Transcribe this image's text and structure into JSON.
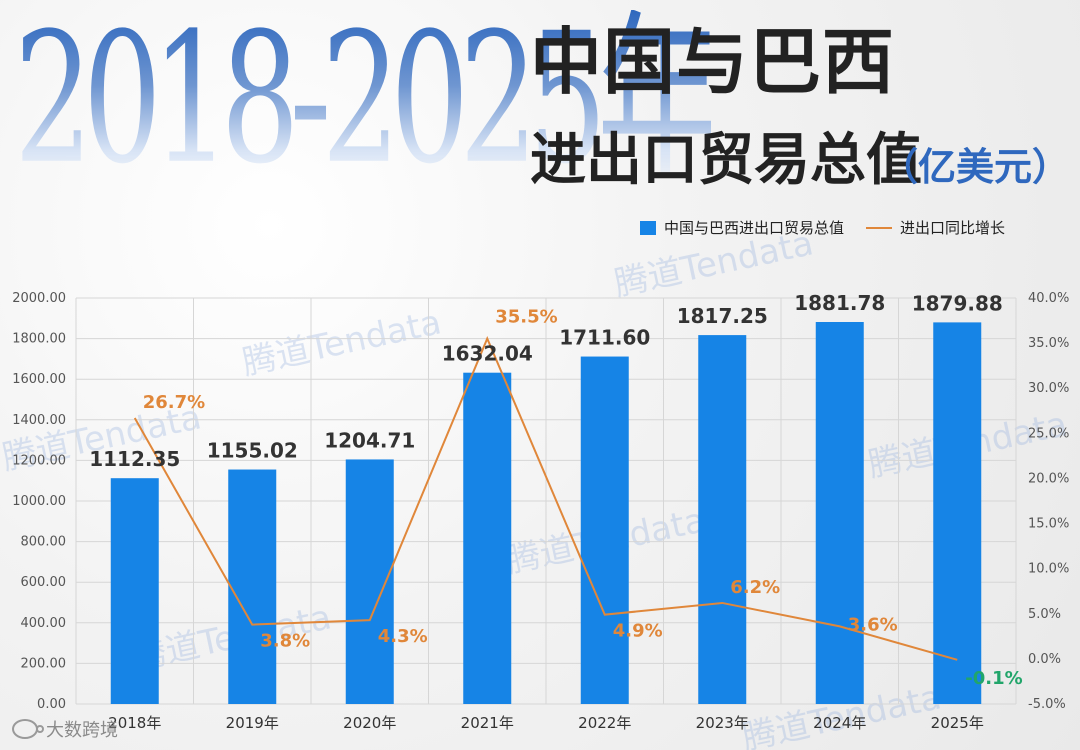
{
  "title": {
    "year_range": "2018-2025年",
    "main": "中国与巴西",
    "sub": "进出口贸易总值",
    "unit": "（亿美元）"
  },
  "watermark": "腾道Tendata",
  "brand": "大数跨境",
  "colors": {
    "bar": "#1684e6",
    "line": "#e0873a",
    "negative": "#21a56a",
    "grid": "#d6d6d6"
  },
  "legend": {
    "bar_label": "中国与巴西进出口贸易总值",
    "line_label": "进出口同比增长"
  },
  "chart_data": {
    "type": "bar",
    "categories": [
      "2018年",
      "2019年",
      "2020年",
      "2021年",
      "2022年",
      "2023年",
      "2024年",
      "2025年"
    ],
    "series": [
      {
        "name": "中国与巴西进出口贸易总值",
        "values": [
          1112.35,
          1155.02,
          1204.71,
          1632.04,
          1711.6,
          1817.25,
          1881.78,
          1879.88
        ],
        "labels": [
          "1112.35",
          "1155.02",
          "1204.71",
          "1632.04",
          "1711.60",
          "1817.25",
          "1881.78",
          "1879.88"
        ]
      },
      {
        "name": "进出口同比增长",
        "values": [
          26.7,
          3.8,
          4.3,
          35.5,
          4.9,
          6.2,
          3.6,
          -0.1
        ],
        "labels": [
          "26.7%",
          "3.8%",
          "4.3%",
          "35.5%",
          "4.9%",
          "6.2%",
          "3.6%",
          "-0.1%"
        ]
      }
    ],
    "left_axis": {
      "ylim": [
        0,
        2000
      ],
      "ticks": [
        0,
        200,
        400,
        600,
        800,
        1000,
        1200,
        1400,
        1600,
        1800,
        2000
      ],
      "tick_labels": [
        "0.00",
        "200.00",
        "400.00",
        "600.00",
        "800.00",
        "1000.00",
        "1200.00",
        "1400.00",
        "1600.00",
        "1800.00",
        "2000.00"
      ]
    },
    "right_axis": {
      "ylim": [
        -5,
        40
      ],
      "ticks": [
        -5,
        0,
        5,
        10,
        15,
        20,
        25,
        30,
        35,
        40
      ],
      "tick_labels": [
        "-5.0%",
        "0.0%",
        "5.0%",
        "10.0%",
        "15.0%",
        "20.0%",
        "25.0%",
        "30.0%",
        "35.0%",
        "40.0%"
      ]
    },
    "grid": true,
    "legend_position": "top-right"
  }
}
